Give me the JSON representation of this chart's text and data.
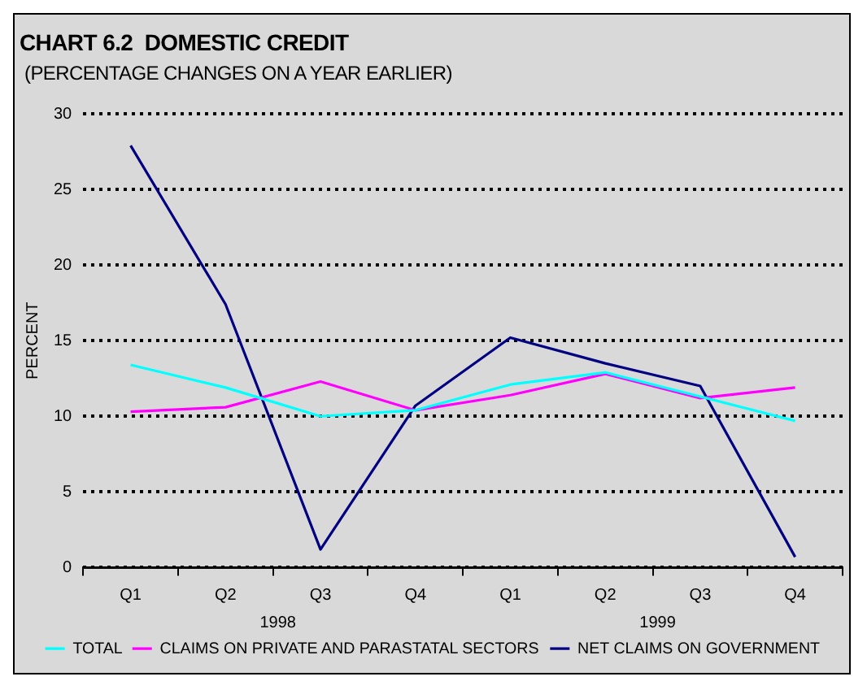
{
  "chart_data": {
    "type": "line",
    "title": "CHART 6.2  DOMESTIC CREDIT",
    "subtitle": "(PERCENTAGE CHANGES ON A YEAR EARLIER)",
    "ylabel": "PERCENT",
    "categories": [
      "Q1",
      "Q2",
      "Q3",
      "Q4",
      "Q1",
      "Q2",
      "Q3",
      "Q4"
    ],
    "annotations": [
      "1998",
      "1999"
    ],
    "series": [
      {
        "name": "TOTAL",
        "color": "#00ffff",
        "values": [
          13.4,
          11.9,
          10.0,
          10.4,
          12.1,
          12.9,
          11.3,
          9.7
        ]
      },
      {
        "name": "CLAIMS ON PRIVATE AND PARASTATAL SECTORS",
        "color": "#ff00ff",
        "values": [
          10.3,
          10.6,
          12.3,
          10.4,
          11.4,
          12.8,
          11.2,
          11.9
        ]
      },
      {
        "name": "NET CLAIMS ON GOVERNMENT",
        "color": "#000080",
        "values": [
          27.9,
          17.4,
          1.2,
          10.7,
          15.2,
          13.5,
          12.0,
          0.7
        ]
      }
    ],
    "ylim": [
      0,
      30
    ],
    "yticks": [
      0,
      5,
      10,
      15,
      20,
      25,
      30
    ],
    "grid": "y",
    "legend": "bottom",
    "marker": "none"
  }
}
